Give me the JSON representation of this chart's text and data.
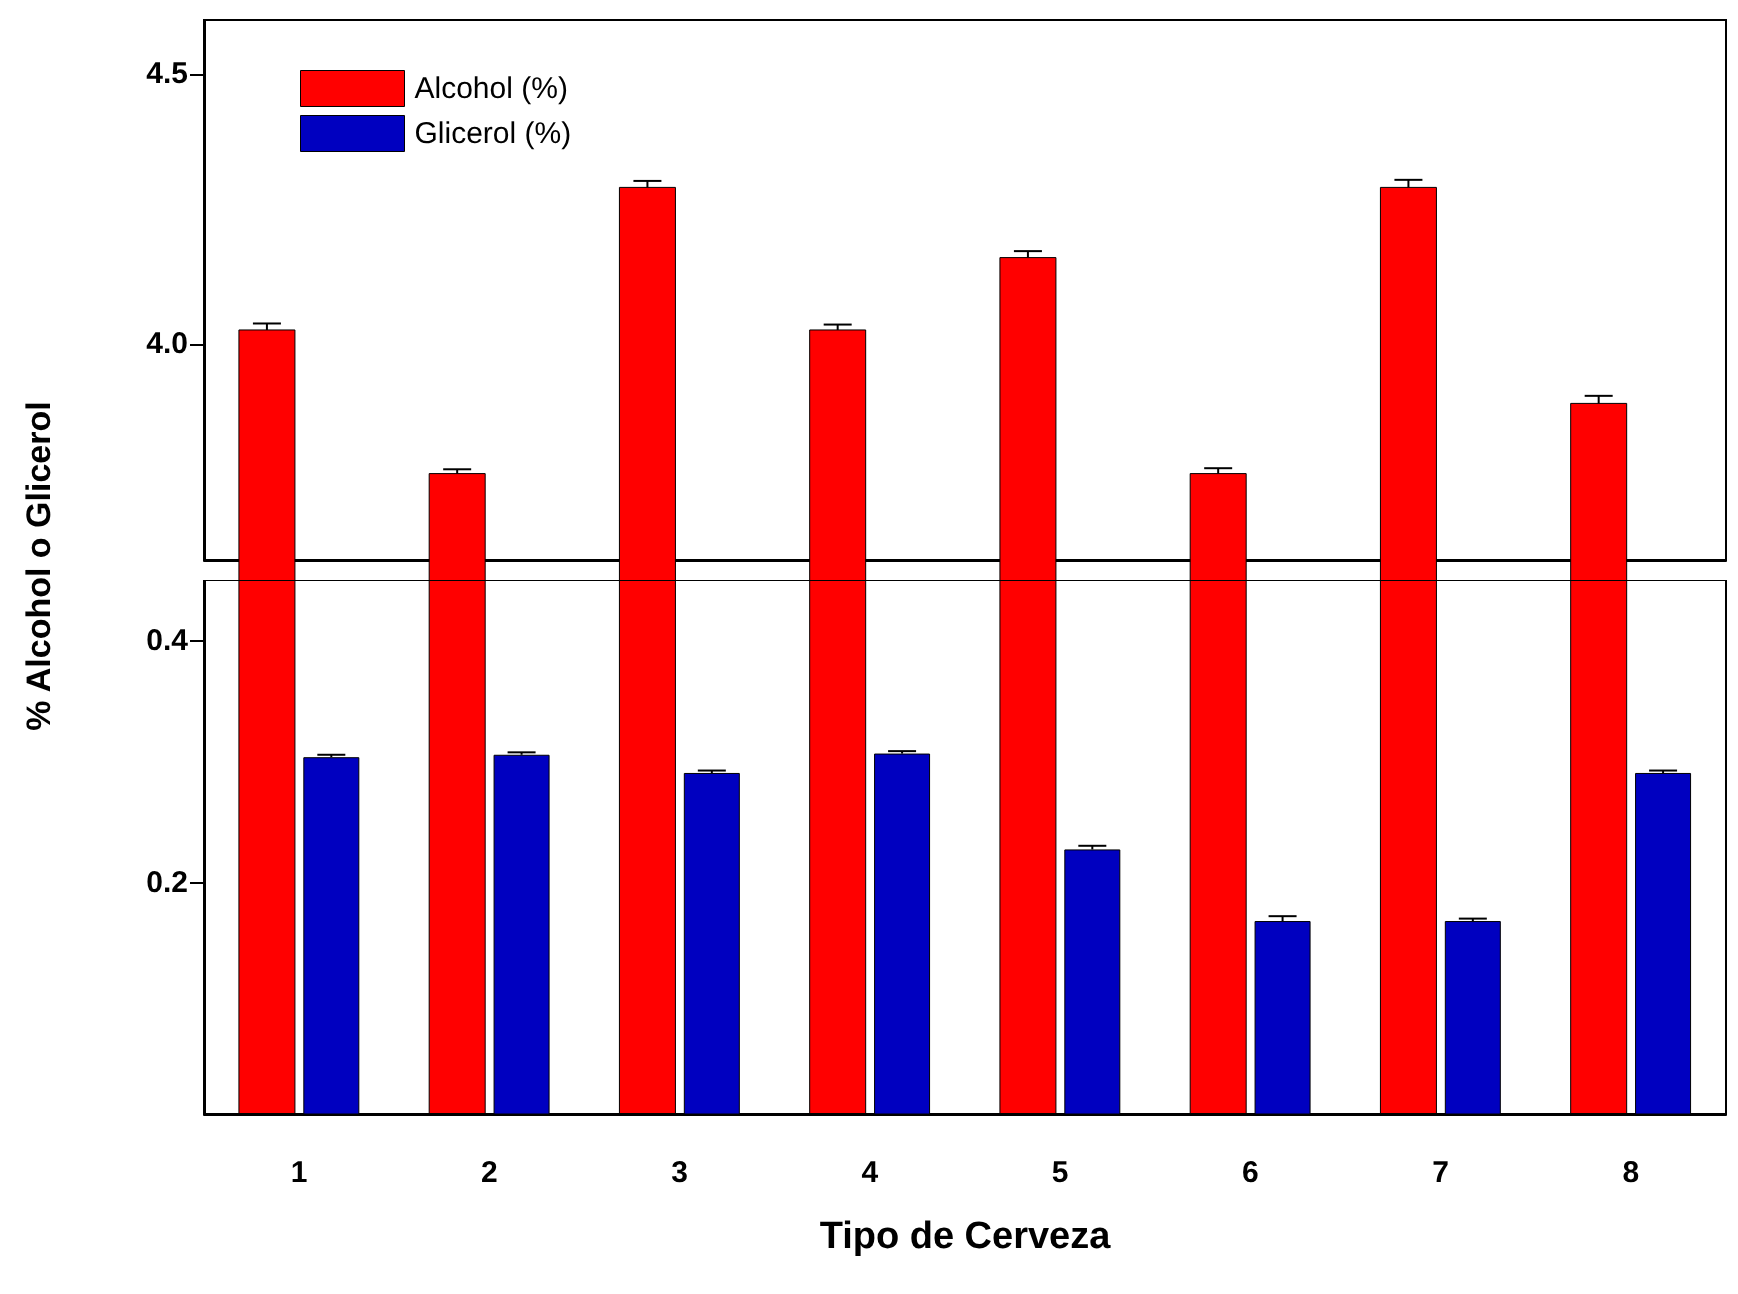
{
  "chart_data": [
    {
      "type": "bar",
      "ylabel": "% Alcohol o Glicerol",
      "categories": [
        "1",
        "2",
        "3",
        "4",
        "5",
        "6",
        "7",
        "8"
      ],
      "series": [
        {
          "name": "Alcohol (%)",
          "color": "#ff0000",
          "values": [
            4.026,
            3.76,
            4.29,
            4.026,
            4.16,
            3.76,
            4.29,
            3.89
          ],
          "errors": [
            0.012,
            0.008,
            0.012,
            0.01,
            0.012,
            0.01,
            0.014,
            0.014
          ]
        },
        {
          "name": "Glicerol (%)",
          "color": "#0000c0",
          "values": [
            null,
            null,
            null,
            null,
            null,
            null,
            null,
            null
          ]
        }
      ],
      "ylim": [
        3.6,
        4.6
      ],
      "yticks": [
        {
          "value": 4.0,
          "label": "4.0"
        },
        {
          "value": 4.5,
          "label": "4.5"
        }
      ],
      "tick_labels": "y",
      "legend": "top left",
      "grid": false
    },
    {
      "type": "bar",
      "xlabel": "Tipo de Cerveza",
      "categories": [
        "1",
        "2",
        "3",
        "4",
        "5",
        "6",
        "7",
        "8"
      ],
      "series": [
        {
          "color": "#ff0000",
          "values": [
            null,
            null,
            null,
            null,
            null,
            null,
            null,
            null
          ]
        },
        {
          "color": "#0000c0",
          "values": [
            0.304,
            0.306,
            0.291,
            0.307,
            0.228,
            0.169,
            0.169,
            0.291
          ],
          "errors": [
            0.002,
            0.002,
            0.002,
            0.002,
            0.003,
            0.004,
            0.002,
            0.002
          ]
        }
      ],
      "ylim": [
        0.01,
        0.45
      ],
      "yticks": [
        0.2,
        0.4
      ],
      "legend": false,
      "grid": false
    }
  ]
}
